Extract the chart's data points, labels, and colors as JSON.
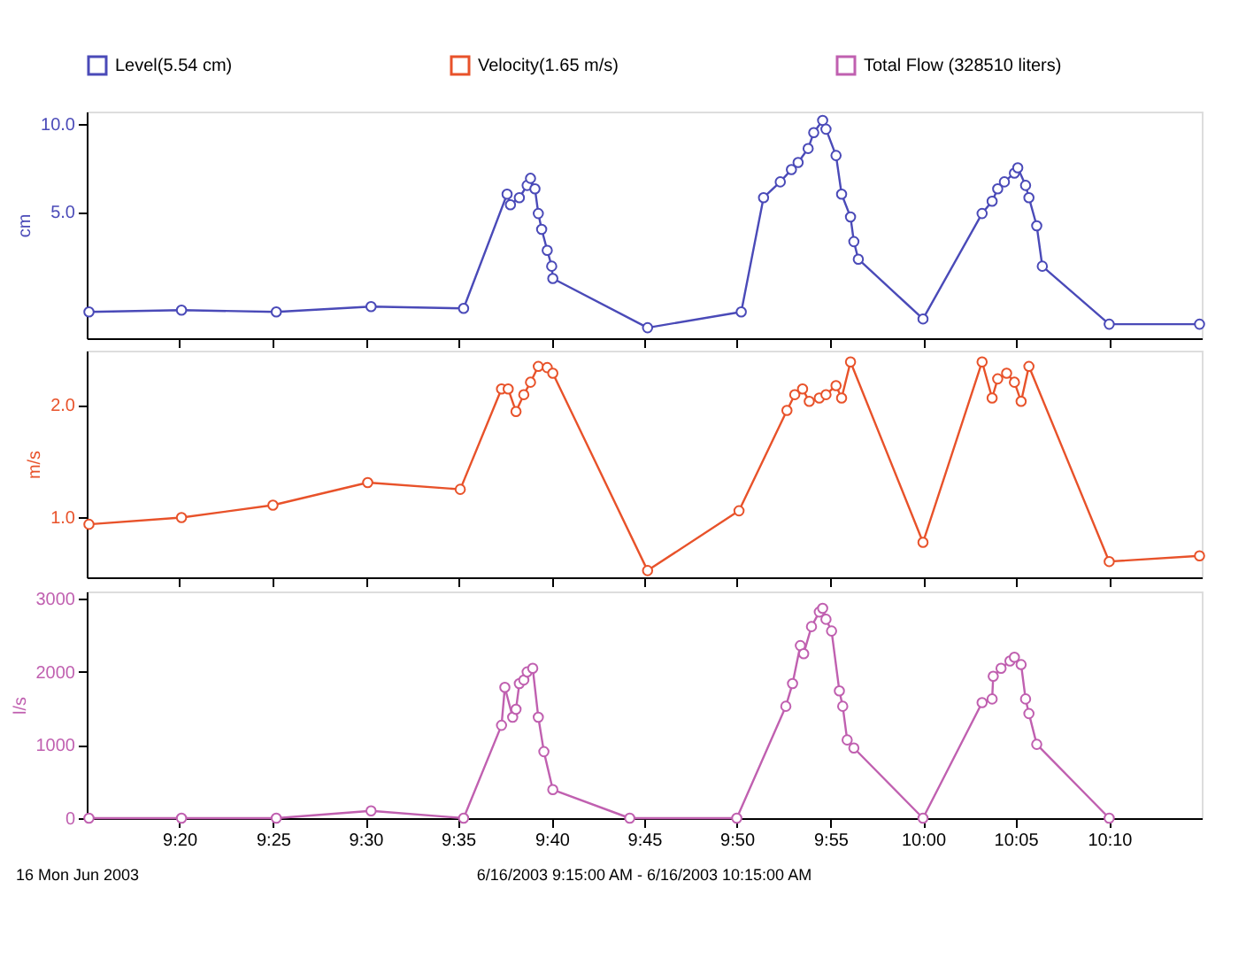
{
  "chart_data": [
    {
      "type": "line",
      "ylabel": "cm",
      "legend": "top",
      "marker": "circle",
      "line_style": "solid",
      "grid": false,
      "tick_labels": "y",
      "xlim": [
        9.25,
        10.25
      ],
      "xticks": [
        {
          "value": 9.333,
          "label": null
        },
        {
          "value": 9.417,
          "label": null
        },
        {
          "value": 9.5,
          "label": null
        },
        {
          "value": 9.583,
          "label": null
        },
        {
          "value": 9.667,
          "label": null
        },
        {
          "value": 9.75,
          "label": null
        },
        {
          "value": 9.833,
          "label": null
        },
        {
          "value": 9.917,
          "label": null
        },
        {
          "value": 10,
          "label": null
        },
        {
          "value": 10.083,
          "label": null
        },
        {
          "value": 10.167,
          "label": null
        }
      ],
      "ylim": [
        -2.2,
        10.7
      ],
      "yticks": [
        {
          "value": 5,
          "label": "5.0"
        },
        {
          "value": 10,
          "label": "10.0"
        }
      ],
      "series": [
        {
          "name": "Level(5.54 cm)",
          "color": "#4a4ab8",
          "x": [
            9.252,
            9.335,
            9.42,
            9.505,
            9.588,
            9.627,
            9.63,
            9.638,
            9.645,
            9.648,
            9.652,
            9.655,
            9.658,
            9.663,
            9.667,
            9.668,
            9.753,
            9.837,
            9.857,
            9.872,
            9.882,
            9.888,
            9.897,
            9.902,
            9.91,
            9.913,
            9.922,
            9.927,
            9.935,
            9.938,
            9.942,
            10.0,
            10.053,
            10.062,
            10.067,
            10.073,
            10.082,
            10.085,
            10.092,
            10.095,
            10.102,
            10.107,
            10.167,
            10.248
          ],
          "values": [
            -0.7,
            -0.6,
            -0.7,
            -0.4,
            -0.5,
            6.0,
            5.4,
            5.8,
            6.5,
            6.9,
            6.3,
            4.9,
            4.0,
            2.8,
            1.9,
            1.2,
            -1.6,
            -0.7,
            5.8,
            6.7,
            7.4,
            7.8,
            8.6,
            9.5,
            10.2,
            9.7,
            8.2,
            6.0,
            4.7,
            3.3,
            2.3,
            -1.1,
            4.9,
            5.6,
            6.3,
            6.7,
            7.2,
            7.5,
            6.5,
            5.8,
            4.2,
            1.9,
            -1.4,
            -1.4
          ]
        }
      ]
    },
    {
      "type": "line",
      "ylabel": "m/s",
      "legend": "top",
      "marker": "circle",
      "line_style": "solid",
      "grid": false,
      "tick_labels": "y",
      "xlim": [
        9.25,
        10.25
      ],
      "xticks": [
        {
          "value": 9.333,
          "label": null
        },
        {
          "value": 9.417,
          "label": null
        },
        {
          "value": 9.5,
          "label": null
        },
        {
          "value": 9.583,
          "label": null
        },
        {
          "value": 9.667,
          "label": null
        },
        {
          "value": 9.75,
          "label": null
        },
        {
          "value": 9.833,
          "label": null
        },
        {
          "value": 9.917,
          "label": null
        },
        {
          "value": 10,
          "label": null
        },
        {
          "value": 10.083,
          "label": null
        },
        {
          "value": 10.167,
          "label": null
        }
      ],
      "ylim": [
        0.47,
        2.48
      ],
      "yticks": [
        {
          "value": 1,
          "label": "1.0"
        },
        {
          "value": 2,
          "label": "2.0"
        }
      ],
      "series": [
        {
          "name": "Velocity(1.65 m/s)",
          "color": "#e8522a",
          "x": [
            9.252,
            9.335,
            9.417,
            9.502,
            9.585,
            9.622,
            9.628,
            9.635,
            9.642,
            9.648,
            9.655,
            9.663,
            9.668,
            9.753,
            9.835,
            9.878,
            9.885,
            9.892,
            9.898,
            9.907,
            9.913,
            9.922,
            9.927,
            9.935,
            10.0,
            10.053,
            10.062,
            10.067,
            10.075,
            10.082,
            10.088,
            10.095,
            10.167,
            10.248
          ],
          "values": [
            0.94,
            1.0,
            1.11,
            1.31,
            1.25,
            2.14,
            2.14,
            1.94,
            2.09,
            2.2,
            2.34,
            2.33,
            2.28,
            0.53,
            1.06,
            1.95,
            2.09,
            2.14,
            2.03,
            2.06,
            2.09,
            2.17,
            2.06,
            2.38,
            0.78,
            2.38,
            2.06,
            2.23,
            2.28,
            2.2,
            2.03,
            2.34,
            0.61,
            0.66
          ]
        }
      ]
    },
    {
      "type": "line",
      "ylabel": "l/s",
      "legend": "top",
      "marker": "circle",
      "line_style": "solid",
      "grid": false,
      "xlim": [
        9.25,
        10.25
      ],
      "xticks": [
        {
          "value": 9.333,
          "label": "9:20"
        },
        {
          "value": 9.417,
          "label": "9:25"
        },
        {
          "value": 9.5,
          "label": "9:30"
        },
        {
          "value": 9.583,
          "label": "9:35"
        },
        {
          "value": 9.667,
          "label": "9:40"
        },
        {
          "value": 9.75,
          "label": "9:45"
        },
        {
          "value": 9.833,
          "label": "9:50"
        },
        {
          "value": 9.917,
          "label": "9:55"
        },
        {
          "value": 10,
          "label": "10:00"
        },
        {
          "value": 10.083,
          "label": "10:05"
        },
        {
          "value": 10.167,
          "label": "10:10"
        }
      ],
      "ylim": [
        0,
        3100
      ],
      "yticks": [
        0,
        1000,
        2000,
        3000
      ],
      "annotations": [
        "16 Mon Jun 2003",
        "6/16/2003 9:15:00 AM - 6/16/2003 10:15:00 AM"
      ],
      "series": [
        {
          "name": "Total Flow (328510 liters)",
          "color": "#c060b0",
          "x": [
            9.252,
            9.335,
            9.42,
            9.505,
            9.588,
            9.622,
            9.625,
            9.632,
            9.635,
            9.638,
            9.642,
            9.645,
            9.65,
            9.655,
            9.66,
            9.668,
            9.737,
            9.833,
            9.877,
            9.883,
            9.89,
            9.893,
            9.9,
            9.907,
            9.91,
            9.913,
            9.918,
            9.925,
            9.928,
            9.932,
            9.938,
            10.0,
            10.053,
            10.062,
            10.063,
            10.07,
            10.078,
            10.082,
            10.088,
            10.092,
            10.095,
            10.102,
            10.167
          ],
          "values": [
            0,
            0,
            0,
            100,
            0,
            1270,
            1790,
            1380,
            1490,
            1840,
            1890,
            2000,
            2050,
            1380,
            910,
            390,
            0,
            0,
            1530,
            1840,
            2360,
            2250,
            2620,
            2820,
            2870,
            2720,
            2560,
            1740,
            1530,
            1070,
            960,
            0,
            1580,
            1630,
            1940,
            2050,
            2150,
            2200,
            2100,
            1630,
            1430,
            1010,
            0
          ]
        }
      ]
    }
  ]
}
